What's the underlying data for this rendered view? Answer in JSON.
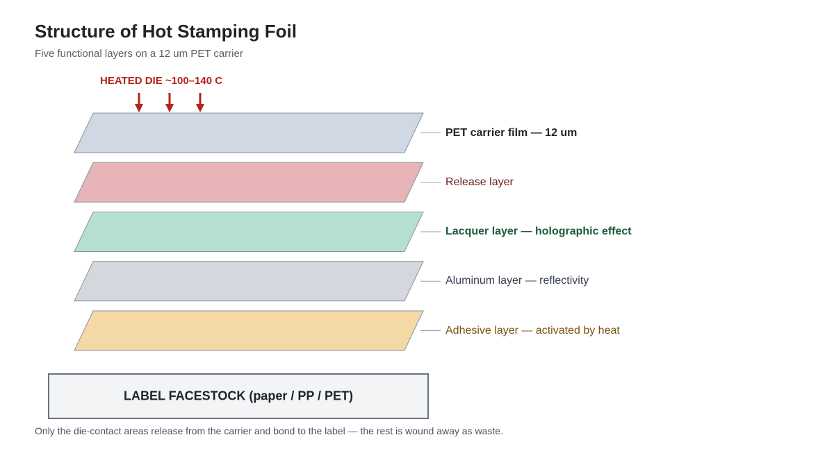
{
  "header": {
    "title": "Structure of Hot Stamping Foil",
    "subtitle": "Five functional layers on a 12 um PET carrier"
  },
  "die": {
    "label": "HEATED DIE ~100–140 C",
    "arrow_count": 3,
    "color": "#b42318"
  },
  "layers": [
    {
      "label": "PET carrier film — 12 um",
      "fill": "#d0d8e4",
      "text_color": "#1f2328",
      "bold": true
    },
    {
      "label": "Release layer",
      "fill": "#e7b4b8",
      "text_color": "#6b1d1d",
      "bold": false
    },
    {
      "label": "Lacquer layer — holographic effect",
      "fill": "#b5e0d1",
      "text_color": "#1a5c3a",
      "bold": true
    },
    {
      "label": "Aluminum layer — reflectivity",
      "fill": "#d4d8de",
      "text_color": "#374151",
      "bold": false
    },
    {
      "label": "Adhesive layer — activated by heat",
      "fill": "#f4d9a7",
      "text_color": "#7a5410",
      "bold": false
    }
  ],
  "facestock": {
    "label": "LABEL FACESTOCK (paper / PP / PET)"
  },
  "footnote": "Only the die-contact areas release from the carrier and bond to the label — the rest is wound away as waste."
}
